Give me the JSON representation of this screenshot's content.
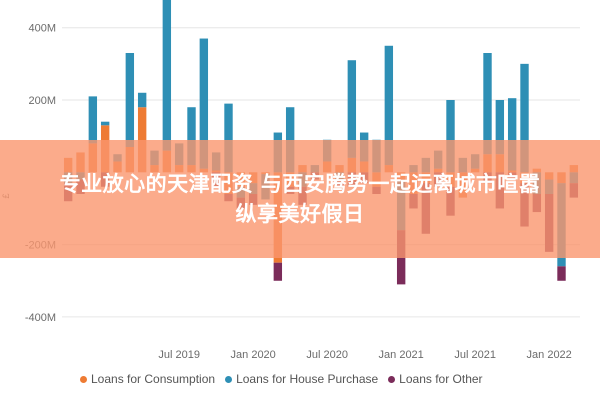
{
  "chart_data": {
    "type": "bar",
    "stacked": true,
    "ylabel": "£",
    "ylim": [
      -450,
      460
    ],
    "y_ticks": [
      {
        "value": 400,
        "label": "400M"
      },
      {
        "value": 200,
        "label": "200M"
      },
      {
        "value": -200,
        "label": "-200M"
      },
      {
        "value": -400,
        "label": "-400M"
      }
    ],
    "x_ticks": [
      {
        "index": 9,
        "label": "Jul 2019"
      },
      {
        "index": 15,
        "label": "Jan 2020"
      },
      {
        "index": 21,
        "label": "Jul 2020"
      },
      {
        "index": 27,
        "label": "Jan 2021"
      },
      {
        "index": 33,
        "label": "Jul 2021"
      },
      {
        "index": 39,
        "label": "Jan 2022"
      }
    ],
    "categories": [
      "2018-10",
      "2018-11",
      "2018-12",
      "2019-01",
      "2019-02",
      "2019-03",
      "2019-04",
      "2019-05",
      "2019-06",
      "2019-07",
      "2019-08",
      "2019-09",
      "2019-10",
      "2019-11",
      "2019-12",
      "2020-01",
      "2020-02",
      "2020-03",
      "2020-04",
      "2020-05",
      "2020-06",
      "2020-07",
      "2020-08",
      "2020-09",
      "2020-10",
      "2020-11",
      "2020-12",
      "2021-01",
      "2021-02",
      "2021-03",
      "2021-04",
      "2021-05",
      "2021-06",
      "2021-07",
      "2021-08",
      "2021-09",
      "2021-10",
      "2021-11",
      "2021-12",
      "2022-01",
      "2022-02",
      "2022-03"
    ],
    "series": [
      {
        "name": "Loans for Consumption",
        "color": "#ee7b33",
        "values": [
          40,
          55,
          80,
          130,
          30,
          70,
          180,
          20,
          60,
          20,
          20,
          10,
          5,
          -60,
          -40,
          -30,
          -5,
          -250,
          -40,
          20,
          0,
          30,
          20,
          40,
          30,
          -40,
          20,
          -20,
          -60,
          -30,
          10,
          -40,
          -70,
          10,
          50,
          50,
          5,
          -30,
          10,
          -20,
          -30,
          20
        ]
      },
      {
        "name": "Loans for House Purchase",
        "color": "#2e8fb5",
        "values": [
          -30,
          -20,
          130,
          10,
          20,
          260,
          40,
          40,
          420,
          60,
          160,
          360,
          50,
          190,
          -30,
          -30,
          -70,
          110,
          180,
          -40,
          20,
          60,
          -20,
          270,
          80,
          90,
          330,
          -140,
          20,
          40,
          50,
          200,
          40,
          40,
          280,
          150,
          200,
          300,
          -60,
          -40,
          -230,
          -30
        ]
      },
      {
        "name": "Loans for Other",
        "color": "#7b2c5a",
        "values": [
          -50,
          -40,
          0,
          -40,
          0,
          0,
          0,
          0,
          0,
          0,
          0,
          0,
          -40,
          -20,
          -30,
          -30,
          0,
          -50,
          -20,
          -50,
          -20,
          0,
          -20,
          -40,
          -30,
          -20,
          0,
          -150,
          -40,
          -140,
          -40,
          -80,
          0,
          0,
          -30,
          -100,
          -20,
          -120,
          -50,
          -160,
          -40,
          -40
        ]
      }
    ],
    "grid": true,
    "legend_position": "bottom"
  },
  "overlay": {
    "line1": "专业放心的天津配资 与西安腾势一起远离城市喧嚣",
    "line2": "纵享美好假日"
  }
}
